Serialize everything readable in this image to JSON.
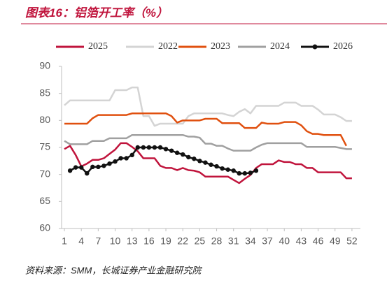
{
  "chart_data": {
    "type": "line",
    "title": "图表16：铝箔开工率（%）",
    "source": "资料来源：SMM，长城证券产业金融研究院",
    "x": [
      1,
      2,
      3,
      4,
      5,
      6,
      7,
      8,
      9,
      10,
      11,
      12,
      13,
      14,
      15,
      16,
      17,
      18,
      19,
      20,
      21,
      22,
      23,
      24,
      25,
      26,
      27,
      28,
      29,
      30,
      31,
      32,
      33,
      34,
      35,
      36,
      37,
      38,
      39,
      40,
      41,
      42,
      43,
      44,
      45,
      46,
      47,
      48,
      49,
      50,
      51,
      52
    ],
    "xlim": [
      0.5,
      53.5
    ],
    "xticks": [
      1,
      4,
      7,
      10,
      13,
      16,
      19,
      22,
      25,
      28,
      31,
      34,
      37,
      40,
      43,
      46,
      49,
      52
    ],
    "ylim": [
      60,
      90
    ],
    "yticks": [
      60,
      65,
      70,
      75,
      80,
      85,
      90
    ],
    "series": [
      {
        "name": "2025",
        "color": "#c0143c",
        "marker": false,
        "values": [
          74.7,
          75.3,
          73.6,
          71.5,
          72.0,
          72.7,
          72.7,
          73.0,
          73.8,
          74.6,
          75.8,
          75.8,
          75.1,
          74.3,
          73.0,
          73.0,
          73.0,
          71.6,
          71.2,
          71.2,
          70.8,
          71.2,
          70.8,
          70.7,
          70.4,
          69.6,
          69.6,
          69.6,
          69.6,
          69.6,
          69.0,
          68.4,
          69.2,
          69.9,
          71.2,
          71.9,
          71.9,
          71.9,
          72.6,
          72.3,
          72.3,
          71.9,
          71.9,
          71.2,
          71.2,
          70.4,
          70.4,
          70.4,
          70.4,
          70.4,
          69.3,
          69.3
        ]
      },
      {
        "name": "2022",
        "color": "#d4d4d4",
        "marker": false,
        "values": [
          82.8,
          83.7,
          83.7,
          83.7,
          83.7,
          83.7,
          83.7,
          83.7,
          83.7,
          85.6,
          85.6,
          85.6,
          86.1,
          86.1,
          80.8,
          80.8,
          79.0,
          79.4,
          79.4,
          79.4,
          79.4,
          79.4,
          80.8,
          81.3,
          81.3,
          81.3,
          81.3,
          81.3,
          81.3,
          81.0,
          80.8,
          81.6,
          82.1,
          81.3,
          82.7,
          82.7,
          82.7,
          82.7,
          82.7,
          83.3,
          83.3,
          83.3,
          82.7,
          82.7,
          82.7,
          82.0,
          81.1,
          81.1,
          81.1,
          80.6,
          79.9,
          79.9
        ]
      },
      {
        "name": "2023",
        "color": "#e0500f",
        "marker": false,
        "values": [
          79.4,
          79.4,
          79.4,
          79.4,
          79.4,
          80.4,
          81.0,
          81.0,
          81.0,
          81.0,
          81.0,
          81.0,
          81.3,
          81.3,
          81.3,
          81.3,
          81.3,
          81.3,
          81.3,
          80.8,
          79.6,
          80.0,
          80.0,
          80.0,
          80.0,
          80.3,
          80.3,
          80.3,
          79.5,
          79.5,
          79.5,
          79.5,
          78.6,
          78.6,
          78.6,
          79.6,
          79.4,
          79.4,
          79.4,
          79.7,
          79.7,
          79.7,
          79.1,
          78.0,
          77.5,
          77.5,
          77.3,
          77.3,
          77.3,
          77.3,
          75.3,
          null
        ]
      },
      {
        "name": "2024",
        "color": "#a0a0a0",
        "marker": false,
        "values": [
          76.2,
          75.6,
          75.6,
          75.6,
          75.6,
          76.2,
          76.2,
          76.2,
          76.7,
          76.7,
          76.7,
          76.7,
          77.3,
          77.3,
          77.3,
          77.3,
          77.3,
          77.3,
          77.3,
          77.3,
          77.3,
          77.3,
          77.0,
          77.0,
          76.8,
          75.7,
          75.7,
          75.3,
          75.3,
          74.8,
          74.4,
          74.4,
          74.4,
          74.4,
          75.0,
          75.5,
          75.8,
          75.8,
          75.8,
          75.8,
          75.8,
          75.8,
          75.8,
          75.1,
          75.1,
          75.1,
          75.1,
          75.1,
          75.1,
          74.9,
          74.7,
          74.7
        ]
      },
      {
        "name": "2026",
        "color": "#111111",
        "marker": true,
        "values": [
          null,
          70.7,
          71.3,
          71.3,
          70.2,
          71.4,
          71.4,
          71.6,
          72.0,
          72.4,
          73.0,
          73.0,
          73.6,
          75.0,
          75.0,
          75.0,
          75.0,
          75.0,
          74.7,
          74.4,
          74.0,
          73.7,
          73.2,
          72.9,
          72.5,
          72.2,
          71.8,
          71.5,
          71.1,
          70.9,
          70.7,
          70.2,
          70.2,
          70.3,
          70.7,
          null,
          null,
          null,
          null,
          null,
          null,
          null,
          null,
          null,
          null,
          null,
          null,
          null,
          null,
          null,
          null,
          null
        ]
      }
    ]
  }
}
